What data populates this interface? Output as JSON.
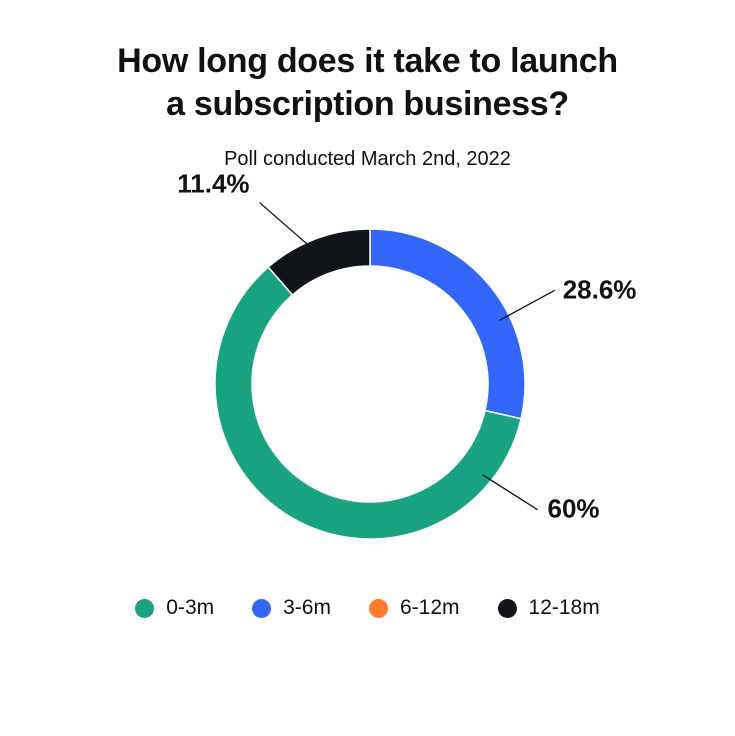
{
  "header": {
    "title_line1": "How long does it take to launch",
    "title_line2": "a subscription business?",
    "subtitle": "Poll conducted March 2nd, 2022"
  },
  "chart_data": {
    "type": "pie",
    "style": "donut",
    "categories": [
      "0-3m",
      "3-6m",
      "6-12m",
      "12-18m"
    ],
    "values": [
      60,
      28.6,
      0,
      11.4
    ],
    "data_labels": [
      "60%",
      "28.6%",
      "",
      "11.4%"
    ],
    "colors": [
      "#1aa383",
      "#3365f9",
      "#ff7b2e",
      "#111419"
    ],
    "legend_position": "bottom"
  }
}
